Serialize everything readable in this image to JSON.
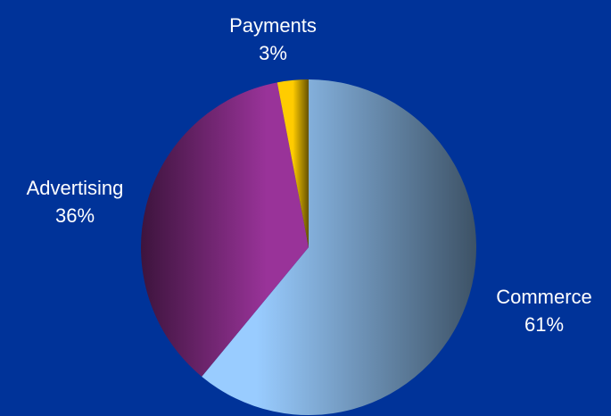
{
  "chart_data": {
    "type": "pie",
    "categories": [
      "Commerce",
      "Advertising",
      "Payments"
    ],
    "values": [
      61,
      36,
      3
    ],
    "value_labels": [
      "61%",
      "36%",
      "3%"
    ],
    "colors": [
      "#99ccff",
      "#993399",
      "#ffcc00"
    ]
  }
}
